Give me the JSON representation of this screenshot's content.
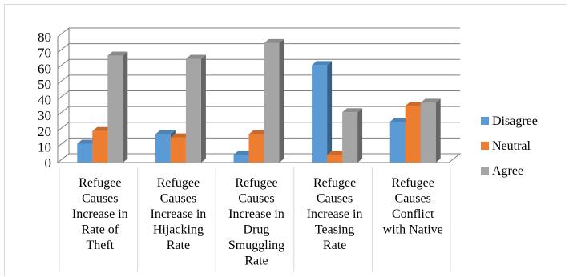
{
  "chart_data": {
    "type": "bar",
    "title": "",
    "xlabel": "",
    "ylabel": "",
    "ylim": [
      0,
      80
    ],
    "yticks": [
      "0",
      "10",
      "20",
      "30",
      "40",
      "50",
      "60",
      "70",
      "80"
    ],
    "grid": true,
    "legend_position": "right",
    "categories": [
      [
        "Refugee",
        "Causes",
        "Increase in",
        "Rate of",
        "Theft"
      ],
      [
        "Refugee",
        "Causes",
        "Increase in",
        "Hijacking",
        "Rate"
      ],
      [
        "Refugee",
        "Causes",
        "Increase in",
        "Drug",
        "Smuggling",
        "Rate"
      ],
      [
        "Refugee",
        "Causes",
        "Increase in",
        "Teasing",
        "Rate"
      ],
      [
        "Refugee",
        "Causes",
        "Conflict",
        "with Native"
      ]
    ],
    "series": [
      {
        "name": "Disagree",
        "color": "#5b9bd5",
        "values": [
          12,
          18,
          5,
          62,
          26
        ]
      },
      {
        "name": "Neutral",
        "color": "#ed7d31",
        "values": [
          20,
          16,
          18,
          5,
          36
        ]
      },
      {
        "name": "Agree",
        "color": "#a5a5a5",
        "values": [
          68,
          66,
          76,
          32,
          38
        ]
      }
    ]
  }
}
